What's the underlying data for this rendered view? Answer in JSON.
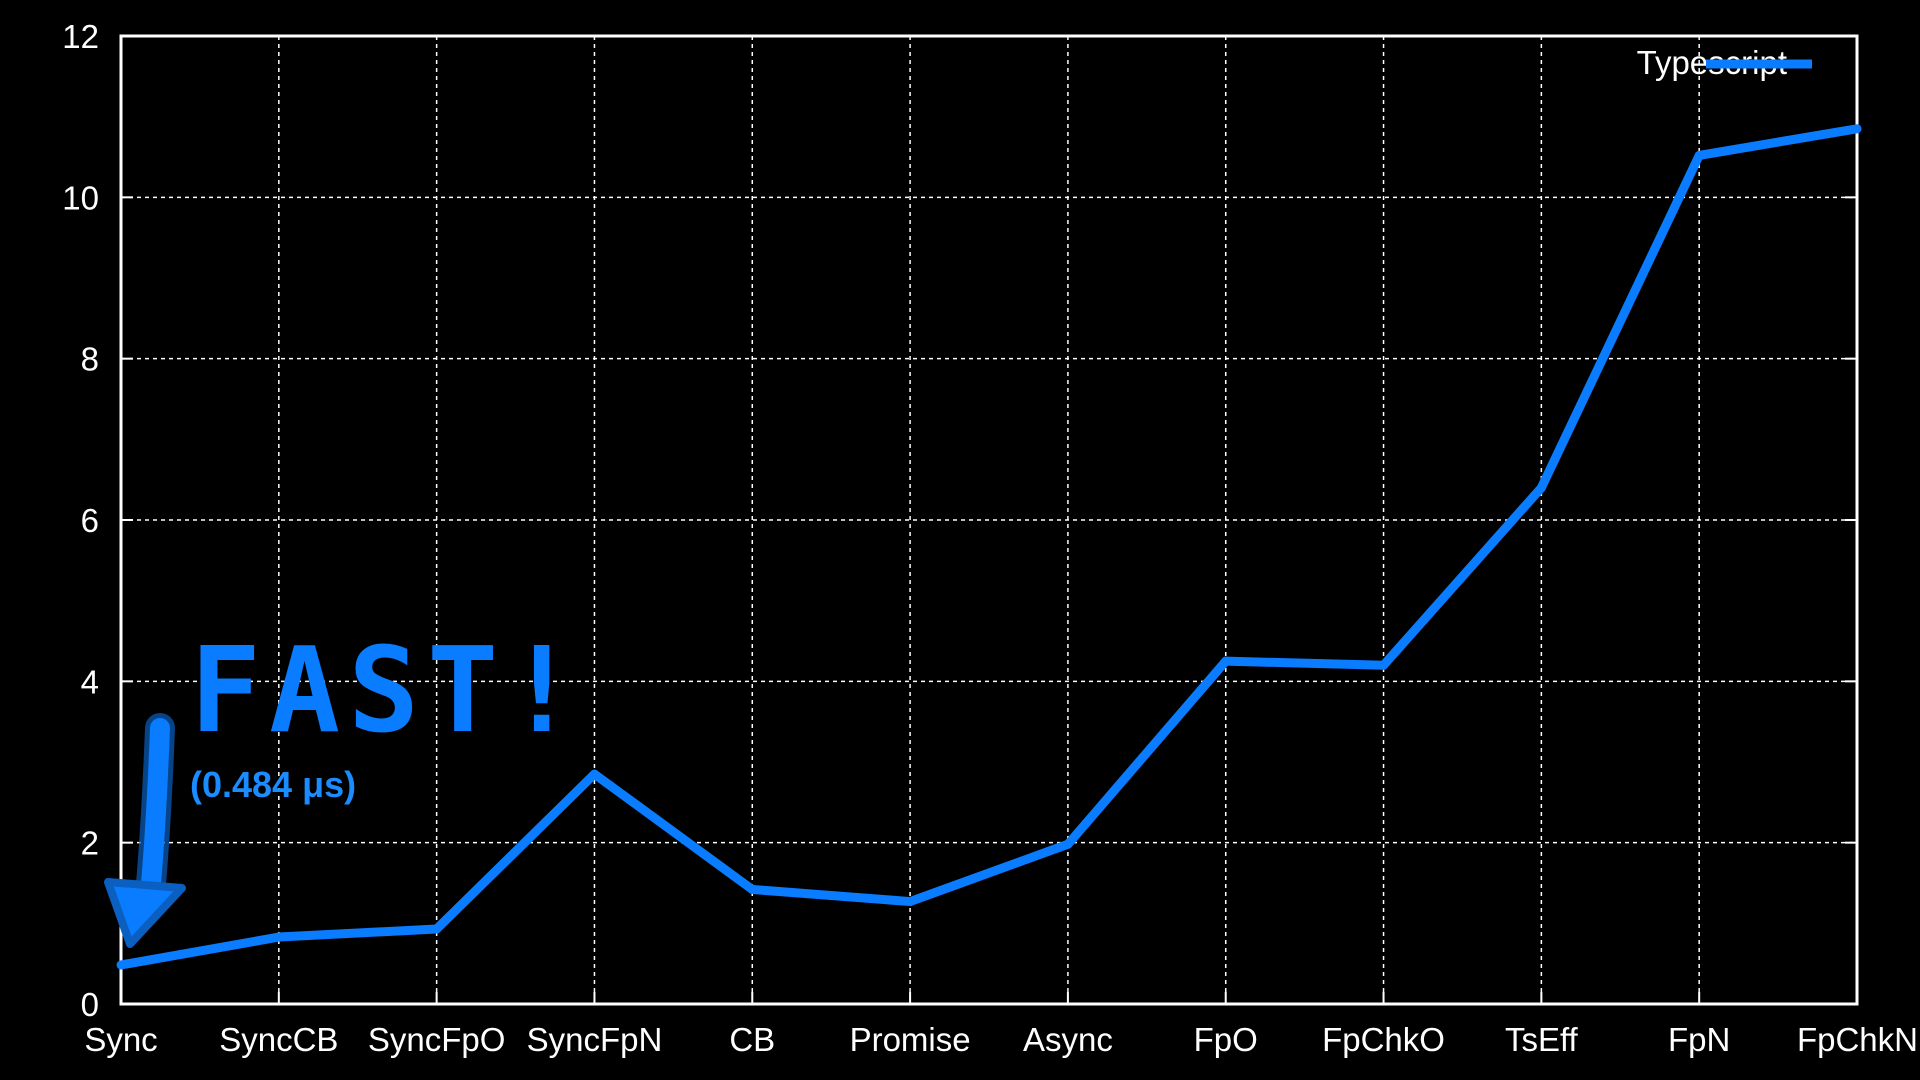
{
  "chart_data": {
    "type": "line",
    "categories": [
      "Sync",
      "SyncCB",
      "SyncFpO",
      "SyncFpN",
      "CB",
      "Promise",
      "Async",
      "FpO",
      "FpChkO",
      "TsEff",
      "FpN",
      "FpChkN"
    ],
    "series": [
      {
        "name": "Typescript",
        "values": [
          0.484,
          0.83,
          0.93,
          2.85,
          1.42,
          1.27,
          1.98,
          4.25,
          4.2,
          6.4,
          10.52,
          10.85
        ],
        "color": "#0a7cff"
      }
    ],
    "yticks": [
      0,
      2,
      4,
      6,
      8,
      10,
      12
    ],
    "ylim": [
      0,
      12
    ],
    "grid": true,
    "legend_position": "top-right",
    "annotation": {
      "title": "FAST!",
      "subtitle": "(0.484 μs)",
      "color": "#0a7cff",
      "points_to": "Sync"
    }
  }
}
